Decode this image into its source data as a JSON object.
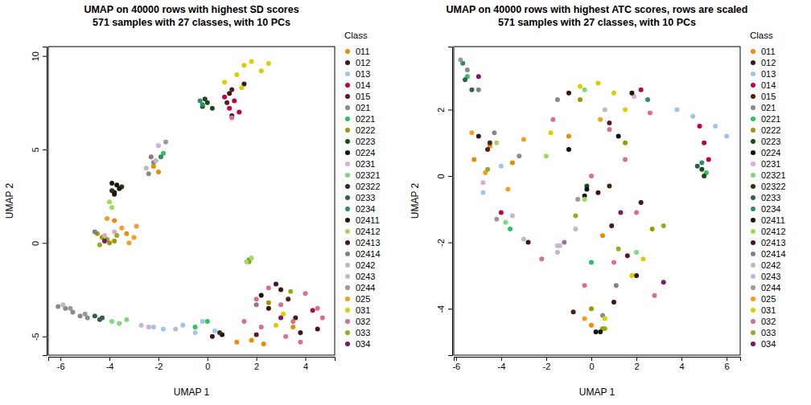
{
  "chart_data": [
    {
      "type": "scatter",
      "title": "UMAP on 40000 rows with highest SD scores",
      "subtitle": "571 samples with 27 classes, with 10 PCs",
      "x_label": "UMAP 1",
      "y_label": "UMAP 2",
      "legend_title": "Class",
      "legend": "right",
      "xlim": [
        -6.5,
        5.2
      ],
      "ylim": [
        -6.0,
        10.5
      ],
      "xticks": [
        -6,
        -4,
        -2,
        0,
        2,
        4
      ],
      "yticks": [
        -5,
        0,
        5,
        10
      ],
      "series": [
        {
          "name": "011",
          "color": "#ef8a00",
          "x": [
            1.2,
            1.8,
            2.3,
            -2.2,
            -3.8,
            -3.3,
            3.5,
            -2.0
          ],
          "y": [
            -5.3,
            -5.2,
            -5.4,
            4.1,
            1.2,
            0.5,
            -4.5,
            3.8
          ]
        },
        {
          "name": "012",
          "color": "#3b1510",
          "x": [
            0.9,
            1.5,
            2.5,
            3.0,
            0.2,
            3.8
          ],
          "y": [
            8.0,
            8.5,
            -3.5,
            -2.5,
            -5.0,
            -4.8
          ]
        },
        {
          "name": "013",
          "color": "#9ec5ea",
          "x": [
            -2.2,
            -1.8,
            -1.0,
            -0.5,
            0.3,
            -0.2
          ],
          "y": [
            -4.5,
            -4.6,
            -4.4,
            -4.8,
            -4.7,
            -4.2
          ]
        },
        {
          "name": "014",
          "color": "#c0004a",
          "x": [
            0.9,
            1.1,
            1.3,
            0.7,
            4.3
          ],
          "y": [
            7.2,
            7.6,
            7.0,
            7.8,
            -3.6
          ]
        },
        {
          "name": "015",
          "color": "#5a1c18",
          "x": [
            0.8,
            1.0,
            3.3,
            2.0
          ],
          "y": [
            7.5,
            8.2,
            -3.0,
            -4.9
          ]
        },
        {
          "name": "021",
          "color": "#8a8a8a",
          "x": [
            -6.1,
            -5.8,
            -5.5,
            -5.2,
            -4.9,
            -2.4,
            -2.2
          ],
          "y": [
            -3.4,
            -3.5,
            -3.7,
            -3.9,
            -4.0,
            3.7,
            4.3
          ]
        },
        {
          "name": "0221",
          "color": "#2ec05c",
          "x": [
            -1.8,
            0.0,
            -0.5,
            1.7
          ],
          "y": [
            4.8,
            -4.2,
            -4.5,
            -0.9
          ]
        },
        {
          "name": "0222",
          "color": "#9a9a00",
          "x": [
            -4.3,
            -4.0,
            -4.5,
            1.7,
            2.5,
            -3.8
          ],
          "y": [
            0.3,
            0.0,
            0.5,
            -1.0,
            -3.2,
            0.1
          ]
        },
        {
          "name": "0223",
          "color": "#1c4a1c",
          "x": [
            -0.2,
            0.0,
            -0.1,
            0.2
          ],
          "y": [
            7.3,
            7.5,
            7.7,
            7.2
          ]
        },
        {
          "name": "0224",
          "color": "#111111",
          "x": [
            -3.8,
            -3.7,
            0.6,
            2.2
          ],
          "y": [
            2.7,
            3.1,
            -4.9,
            -2.8
          ]
        },
        {
          "name": "0231",
          "color": "#d8acd8",
          "x": [
            -2.0,
            -4.2,
            -3.8
          ],
          "y": [
            5.2,
            0.4,
            0.6
          ]
        },
        {
          "name": "02321",
          "color": "#7dd87d",
          "x": [
            -3.9,
            -3.6,
            -3.3
          ],
          "y": [
            -4.2,
            -4.3,
            -4.1
          ]
        },
        {
          "name": "02322",
          "color": "#3a2a16",
          "x": [
            -3.9,
            -3.5,
            0.5
          ],
          "y": [
            2.8,
            3.0,
            -4.8
          ]
        },
        {
          "name": "0233",
          "color": "#2f5f4f",
          "x": [
            -4.6,
            -4.4,
            -4.3
          ],
          "y": [
            -3.9,
            -4.1,
            -4.0
          ]
        },
        {
          "name": "0234",
          "color": "#2e8b6e",
          "x": [
            -0.3,
            -0.2,
            -1.9
          ],
          "y": [
            7.6,
            7.4,
            4.6
          ]
        },
        {
          "name": "02411",
          "color": "#1a1a0a",
          "x": [
            -3.8,
            -3.6,
            -3.9
          ],
          "y": [
            2.6,
            2.9,
            3.2
          ]
        },
        {
          "name": "02412",
          "color": "#a0d860",
          "x": [
            -3.9,
            -4.0,
            1.8,
            1.6
          ],
          "y": [
            1.9,
            2.2,
            -0.8,
            -1.0
          ]
        },
        {
          "name": "02413",
          "color": "#4a1030",
          "x": [
            1.0,
            2.8,
            3.6,
            4.5
          ],
          "y": [
            6.8,
            -2.2,
            -4.0,
            -4.6
          ]
        },
        {
          "name": "02414",
          "color": "#8a7a8a",
          "x": [
            -2.3,
            -4.6,
            2.0
          ],
          "y": [
            4.6,
            0.6,
            -3.3
          ]
        },
        {
          "name": "0242",
          "color": "#bbbbbb",
          "x": [
            -2.5,
            -2.1,
            -5.9
          ],
          "y": [
            4.0,
            4.4,
            -3.3
          ]
        },
        {
          "name": "0243",
          "color": "#c8b4d8",
          "x": [
            -2.7,
            -2.4,
            -1.3
          ],
          "y": [
            -4.4,
            -4.5,
            -4.6
          ]
        },
        {
          "name": "0244",
          "color": "#999999",
          "x": [
            -5.6,
            -5.0,
            -1.7
          ],
          "y": [
            -3.5,
            -3.8,
            5.4
          ]
        },
        {
          "name": "025",
          "color": "#f0a020",
          "x": [
            -3.5,
            -3.0,
            -2.9,
            -4.1,
            -3.2
          ],
          "y": [
            0.8,
            0.3,
            0.9,
            1.3,
            0.0
          ]
        },
        {
          "name": "031",
          "color": "#ddcc00",
          "x": [
            1.5,
            1.8,
            2.2,
            2.5,
            0.7,
            1.2,
            1.4,
            3.1,
            2.8
          ],
          "y": [
            9.5,
            9.7,
            9.2,
            9.6,
            8.6,
            9.0,
            8.3,
            -3.8,
            -4.4
          ]
        },
        {
          "name": "032",
          "color": "#d87088",
          "x": [
            1.0,
            2.0,
            2.5,
            3.0,
            3.5,
            4.0,
            4.5,
            3.2,
            2.2,
            3.8,
            4.7,
            1.5
          ],
          "y": [
            6.7,
            -3.0,
            -2.4,
            -3.3,
            -4.2,
            -2.7,
            -3.5,
            -5.0,
            -4.5,
            -5.3,
            -4.0,
            -4.2
          ]
        },
        {
          "name": "033",
          "color": "#9aaa20",
          "x": [
            -4.4,
            -4.1,
            -3.7,
            3.4
          ],
          "y": [
            -0.1,
            0.2,
            0.4,
            -2.6
          ]
        },
        {
          "name": "034",
          "color": "#7a1a6a",
          "x": [
            -4.2,
            3.0
          ],
          "y": [
            0.1,
            -4.0
          ]
        }
      ]
    },
    {
      "type": "scatter",
      "title": "UMAP on 40000 rows with highest ATC scores, rows are scaled",
      "subtitle": "571 samples with 27 classes, with 10 PCs",
      "x_label": "UMAP 1",
      "y_label": "UMAP 2",
      "legend_title": "Class",
      "legend": "right",
      "xlim": [
        -6.1,
        6.6
      ],
      "ylim": [
        -5.4,
        3.9
      ],
      "xticks": [
        -6,
        -4,
        -2,
        0,
        2,
        4,
        6
      ],
      "yticks": [
        -4,
        -2,
        0,
        2
      ],
      "series": [
        {
          "name": "011",
          "color": "#ef8a00",
          "x": [
            -5.2,
            -4.5,
            -3.5,
            -1.0,
            0.0,
            0.5
          ],
          "y": [
            0.5,
            0.9,
            0.4,
            1.2,
            -4.5,
            -1.8
          ]
        },
        {
          "name": "012",
          "color": "#3b1510",
          "x": [
            -5.0,
            -1.0,
            0.3,
            2.0,
            1.0
          ],
          "y": [
            1.2,
            2.5,
            -0.5,
            -3.0,
            -3.8
          ]
        },
        {
          "name": "013",
          "color": "#9ec5ea",
          "x": [
            -4.0,
            3.8,
            4.5,
            5.5,
            6.0,
            -4.8
          ],
          "y": [
            0.3,
            2.0,
            1.8,
            1.5,
            1.2,
            -0.5
          ]
        },
        {
          "name": "014",
          "color": "#c0004a",
          "x": [
            -4.0,
            2.2,
            5.0,
            5.2,
            4.8
          ],
          "y": [
            -1.1,
            2.6,
            1.0,
            0.5,
            1.5
          ]
        },
        {
          "name": "015",
          "color": "#5a1c18",
          "x": [
            -4.6,
            0.8,
            1.6
          ],
          "y": [
            0.8,
            1.6,
            -2.4
          ]
        },
        {
          "name": "021",
          "color": "#8a8a8a",
          "x": [
            -3.2,
            -4.3,
            -1.5,
            0.5,
            -5.5
          ],
          "y": [
            0.6,
            1.3,
            2.3,
            -4.2,
            3.2
          ]
        },
        {
          "name": "0221",
          "color": "#2ec05c",
          "x": [
            -3.6,
            -5.5,
            0.0,
            5.1
          ],
          "y": [
            -1.6,
            3.0,
            -2.6,
            0.1
          ]
        },
        {
          "name": "0222",
          "color": "#9a9a00",
          "x": [
            0.0,
            0.5,
            -0.5,
            1.5,
            2.7
          ],
          "y": [
            -4.0,
            -4.6,
            2.3,
            1.0,
            -1.6
          ]
        },
        {
          "name": "0223",
          "color": "#1c4a1c",
          "x": [
            5.0,
            4.9,
            -0.2
          ],
          "y": [
            0.0,
            0.2,
            -0.3
          ]
        },
        {
          "name": "0224",
          "color": "#111111",
          "x": [
            -0.2,
            1.2,
            -1.0,
            0.2
          ],
          "y": [
            -0.4,
            1.2,
            0.8,
            -4.7
          ]
        },
        {
          "name": "0231",
          "color": "#d8acd8",
          "x": [
            -1.4,
            -4.8,
            1.9
          ],
          "y": [
            -2.1,
            -0.2,
            2.4
          ]
        },
        {
          "name": "02321",
          "color": "#7dd87d",
          "x": [
            -0.3,
            -3.8,
            2.0
          ],
          "y": [
            2.6,
            -1.4,
            -2.3
          ]
        },
        {
          "name": "02322",
          "color": "#3a2a16",
          "x": [
            -4.5,
            0.8,
            -0.8
          ],
          "y": [
            1.0,
            -0.3,
            -4.1
          ]
        },
        {
          "name": "0233",
          "color": "#2f5f4f",
          "x": [
            -5.6,
            -5.3,
            4.7
          ],
          "y": [
            2.9,
            2.6,
            0.3
          ]
        },
        {
          "name": "0234",
          "color": "#2e8b6e",
          "x": [
            -5.7,
            4.9,
            2.5
          ],
          "y": [
            3.4,
            0.4,
            2.3
          ]
        },
        {
          "name": "02411",
          "color": "#1a1a0a",
          "x": [
            -0.3,
            0.4,
            1.8
          ],
          "y": [
            -0.6,
            -4.7,
            2.5
          ]
        },
        {
          "name": "02412",
          "color": "#a0d860",
          "x": [
            -4.2,
            -0.3,
            -2.0
          ],
          "y": [
            1.0,
            -0.7,
            0.6
          ]
        },
        {
          "name": "02413",
          "color": "#4a1030",
          "x": [
            2.2,
            -2.8,
            0.9
          ],
          "y": [
            -0.8,
            -2.0,
            -1.5
          ]
        },
        {
          "name": "02414",
          "color": "#8a7a8a",
          "x": [
            -1.2,
            1.1,
            -5.0
          ],
          "y": [
            -2.0,
            -3.3,
            2.6
          ]
        },
        {
          "name": "0242",
          "color": "#bbbbbb",
          "x": [
            -3.0,
            -1.5,
            0.6
          ],
          "y": [
            -1.9,
            -2.3,
            2.0
          ]
        },
        {
          "name": "0243",
          "color": "#c8b4d8",
          "x": [
            -1.5,
            -0.7,
            -3.5
          ],
          "y": [
            -2.1,
            -1.6,
            -1.2
          ]
        },
        {
          "name": "0244",
          "color": "#999999",
          "x": [
            -5.8,
            -4.2,
            -0.6
          ],
          "y": [
            3.5,
            -1.3,
            -0.7
          ]
        },
        {
          "name": "025",
          "color": "#f0a020",
          "x": [
            -5.3,
            -4.7,
            -3.0,
            -3.7,
            0.4,
            -0.3
          ],
          "y": [
            1.3,
            0.1,
            1.1,
            -0.4,
            1.7,
            -4.3
          ]
        },
        {
          "name": "031",
          "color": "#ddcc00",
          "x": [
            -1.8,
            -0.5,
            0.3,
            1.0,
            1.5,
            0.6,
            2.3,
            1.8
          ],
          "y": [
            1.3,
            2.7,
            2.8,
            2.5,
            2.0,
            -4.3,
            -2.5,
            -3.0
          ]
        },
        {
          "name": "032",
          "color": "#d87088",
          "x": [
            -1.7,
            0.0,
            0.8,
            1.5,
            2.6,
            -0.3,
            1.0,
            2.0,
            2.8,
            -2.2
          ],
          "y": [
            1.7,
            0.0,
            1.4,
            0.5,
            1.9,
            -3.3,
            -2.6,
            -1.1,
            -3.6,
            -2.5
          ]
        },
        {
          "name": "033",
          "color": "#9aaa20",
          "x": [
            -0.7,
            0.6,
            1.2,
            3.2,
            -4.6
          ],
          "y": [
            -1.2,
            -4.6,
            -2.2,
            -1.5,
            0.2
          ]
        },
        {
          "name": "034",
          "color": "#7a1a6a",
          "x": [
            -5.0,
            1.3,
            3.2
          ],
          "y": [
            3.0,
            -1.1,
            -3.2
          ]
        }
      ]
    }
  ]
}
